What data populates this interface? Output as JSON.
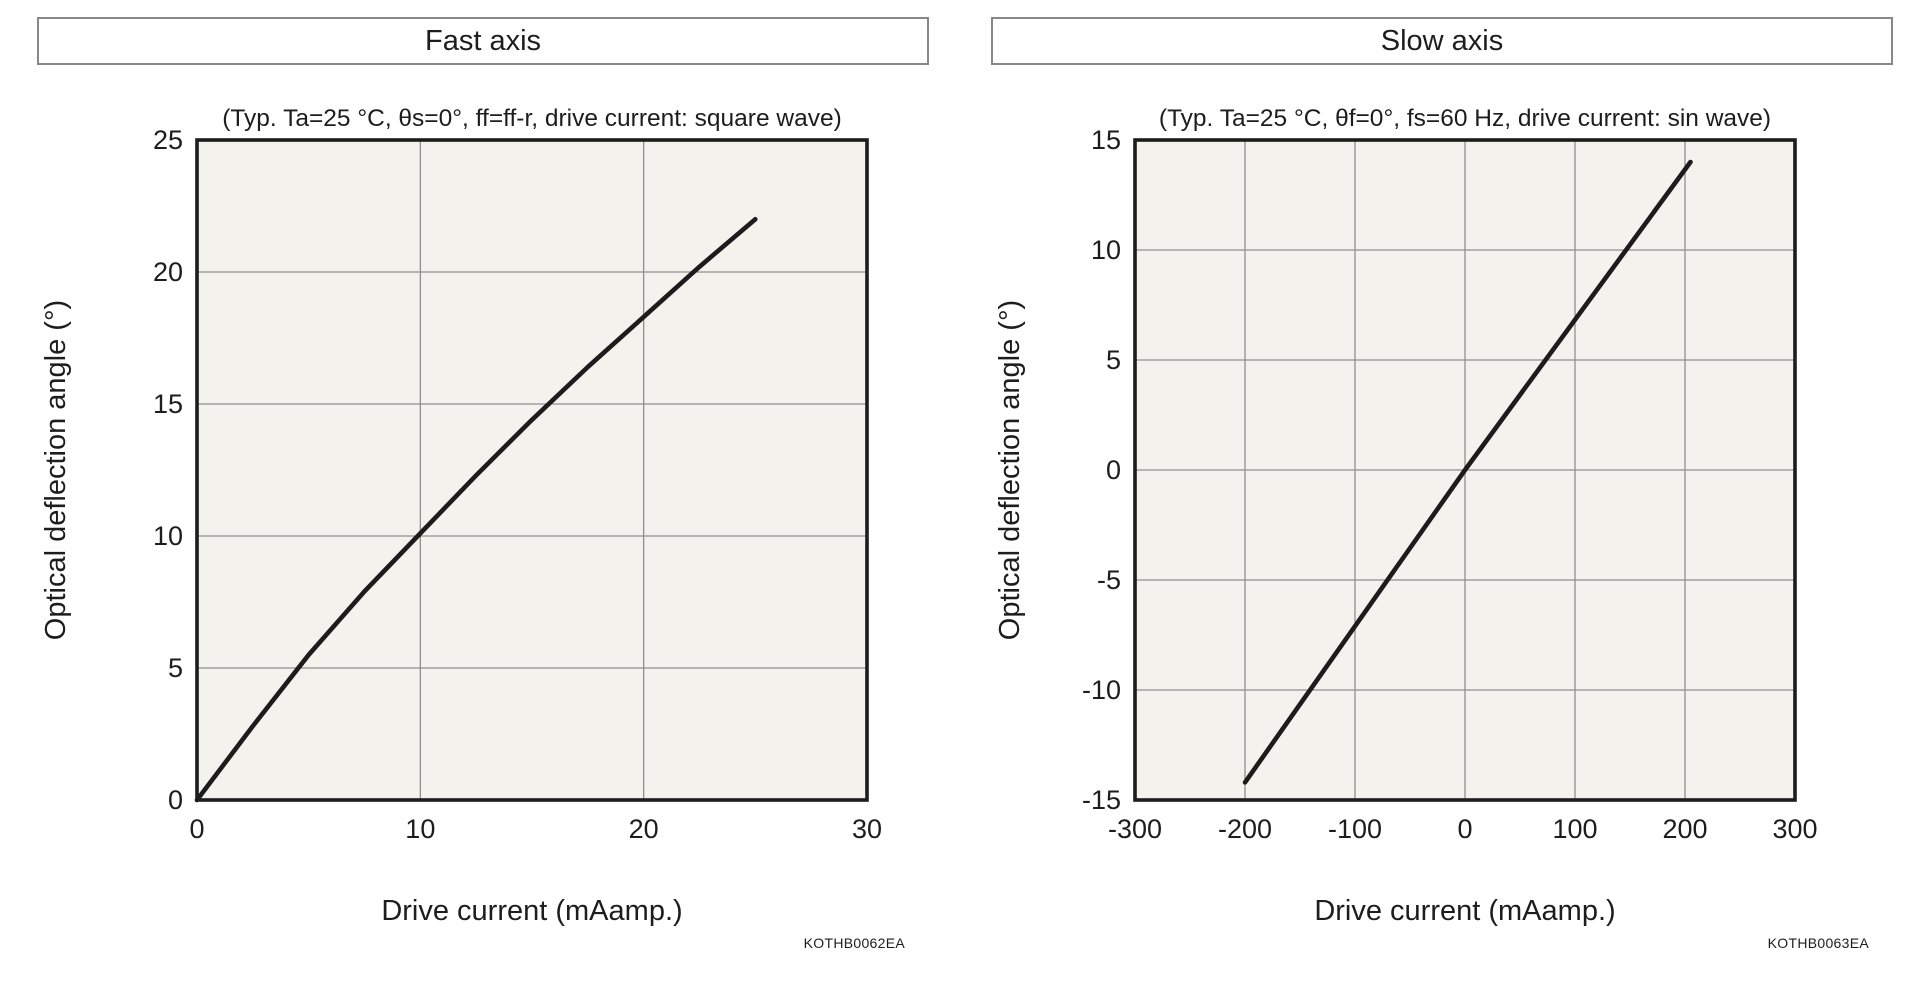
{
  "colors": {
    "page_bg": "#ffffff",
    "plot_bg": "#f3f2ed",
    "grid": "#8f8f8f",
    "ink": "#1c1c1c",
    "title_box_border": "#888888"
  },
  "chart_data": [
    {
      "type": "line",
      "title": "Fast axis",
      "subtitle": "(Typ. Ta=25 °C, θs=0°, ff=ff-r, drive current: square wave)",
      "xlabel": "Drive current (mAamp.)",
      "ylabel": "Optical deflection angle (°)",
      "code": "KOTHB0062EA",
      "xlim": [
        0,
        30
      ],
      "ylim": [
        0,
        25
      ],
      "xticks": [
        0,
        10,
        20,
        30
      ],
      "yticks": [
        0,
        5,
        10,
        15,
        20,
        25
      ],
      "grid": true,
      "legend": "none",
      "series": [
        {
          "name": "fast-axis-deflection",
          "points": [
            [
              0,
              0
            ],
            [
              2.5,
              2.8
            ],
            [
              5,
              5.5
            ],
            [
              7.5,
              7.9
            ],
            [
              10,
              10.1
            ],
            [
              12.5,
              12.3
            ],
            [
              15,
              14.4
            ],
            [
              17.5,
              16.4
            ],
            [
              20,
              18.3
            ],
            [
              22.5,
              20.2
            ],
            [
              25,
              22
            ]
          ]
        }
      ]
    },
    {
      "type": "line",
      "title": "Slow axis",
      "subtitle": "(Typ. Ta=25 °C, θf=0°, fs=60 Hz, drive current: sin wave)",
      "xlabel": "Drive current (mAamp.)",
      "ylabel": "Optical deflection angle (°)",
      "code": "KOTHB0063EA",
      "xlim": [
        -300,
        300
      ],
      "ylim": [
        -15,
        15
      ],
      "xticks": [
        -300,
        -200,
        -100,
        0,
        100,
        200,
        300
      ],
      "yticks": [
        -15,
        -10,
        -5,
        0,
        5,
        10,
        15
      ],
      "grid": true,
      "legend": "none",
      "series": [
        {
          "name": "slow-axis-deflection",
          "points": [
            [
              -200,
              -14.2
            ],
            [
              0,
              0
            ],
            [
              205,
              14
            ]
          ]
        }
      ]
    }
  ]
}
